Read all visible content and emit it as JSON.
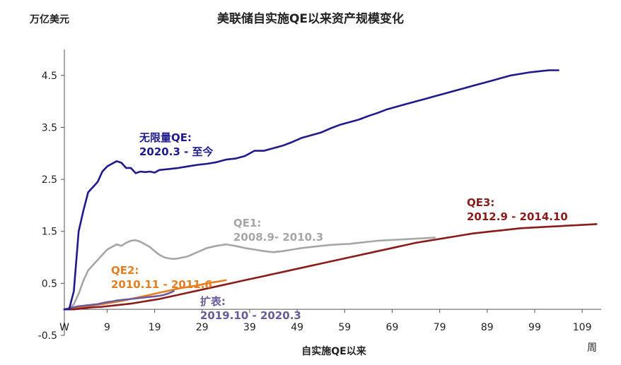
{
  "chart_data": {
    "type": "line",
    "title": "美联储自实施QE以来资产规模变化",
    "ylabel": "万亿美元",
    "xlabel": "自实施QE以来",
    "x_unit_label": "周",
    "x_start_label": "W",
    "xlim": [
      0,
      113
    ],
    "ylim": [
      -0.5,
      5.0
    ],
    "y_ticks": [
      -0.5,
      0.5,
      1.5,
      2.5,
      3.5,
      4.5
    ],
    "y_tick_labels": [
      "-0.5",
      "0.5",
      "1.5",
      "2.5",
      "3.5",
      "4.5"
    ],
    "x_ticks": [
      9,
      19,
      29,
      39,
      49,
      59,
      69,
      79,
      89,
      99,
      109
    ],
    "x_tick_labels": [
      "9",
      "19",
      "29",
      "39",
      "49",
      "59",
      "69",
      "79",
      "89",
      "99",
      "109"
    ],
    "grid": false,
    "colors": {
      "unlimited": "#1f1a8c",
      "qe1": "#a6a6a6",
      "qe2": "#e67e22",
      "qe3": "#8b1a1a",
      "expansion": "#6a5a9a",
      "axis": "#555555"
    },
    "series": [
      {
        "key": "unlimited",
        "name": "无限量QE:",
        "period": "2020.3 - 至今",
        "x": [
          0,
          1,
          2,
          3,
          4,
          5,
          6,
          7,
          8,
          9,
          10,
          11,
          12,
          13,
          14,
          15,
          16,
          17,
          18,
          19,
          20,
          22,
          24,
          26,
          28,
          30,
          32,
          34,
          36,
          38,
          40,
          42,
          44,
          46,
          48,
          50,
          52,
          54,
          56,
          58,
          60,
          62,
          64,
          66,
          68,
          70,
          72,
          74,
          76,
          78,
          80,
          82,
          84,
          86,
          88,
          90,
          92,
          94,
          96,
          98,
          100,
          102,
          104
        ],
        "values": [
          0,
          0,
          0.35,
          1.5,
          1.9,
          2.25,
          2.35,
          2.45,
          2.65,
          2.75,
          2.8,
          2.85,
          2.82,
          2.72,
          2.72,
          2.62,
          2.65,
          2.64,
          2.65,
          2.63,
          2.68,
          2.7,
          2.72,
          2.75,
          2.78,
          2.8,
          2.83,
          2.88,
          2.9,
          2.95,
          3.05,
          3.05,
          3.1,
          3.15,
          3.22,
          3.3,
          3.35,
          3.4,
          3.48,
          3.55,
          3.6,
          3.65,
          3.72,
          3.78,
          3.85,
          3.9,
          3.95,
          4.0,
          4.05,
          4.1,
          4.15,
          4.2,
          4.25,
          4.3,
          4.35,
          4.4,
          4.45,
          4.5,
          4.53,
          4.56,
          4.58,
          4.6,
          4.6
        ]
      },
      {
        "key": "qe1",
        "name": "QE1:",
        "period": "2008.9- 2010.3",
        "x": [
          0,
          1,
          2,
          3,
          4,
          5,
          6,
          7,
          8,
          9,
          10,
          11,
          12,
          13,
          14,
          15,
          16,
          17,
          18,
          19,
          20,
          21,
          22,
          23,
          24,
          25,
          26,
          28,
          30,
          32,
          34,
          36,
          38,
          40,
          42,
          44,
          46,
          48,
          50,
          52,
          54,
          56,
          58,
          60,
          62,
          64,
          66,
          68,
          70,
          72,
          74,
          76,
          78
        ],
        "values": [
          0,
          0,
          0.1,
          0.3,
          0.55,
          0.75,
          0.85,
          0.95,
          1.05,
          1.15,
          1.2,
          1.25,
          1.22,
          1.28,
          1.32,
          1.33,
          1.3,
          1.25,
          1.2,
          1.12,
          1.05,
          1.0,
          0.98,
          0.97,
          0.98,
          1.0,
          1.02,
          1.1,
          1.18,
          1.22,
          1.25,
          1.22,
          1.18,
          1.15,
          1.12,
          1.1,
          1.12,
          1.15,
          1.18,
          1.2,
          1.22,
          1.24,
          1.25,
          1.26,
          1.28,
          1.3,
          1.32,
          1.33,
          1.34,
          1.35,
          1.36,
          1.37,
          1.38
        ]
      },
      {
        "key": "qe2",
        "name": "QE2:",
        "period": "2010.11 - 2011.6",
        "x": [
          0,
          2,
          4,
          6,
          8,
          10,
          12,
          14,
          16,
          18,
          20,
          22,
          24,
          26,
          28,
          30,
          32,
          34
        ],
        "values": [
          0,
          0.02,
          0.05,
          0.08,
          0.1,
          0.13,
          0.16,
          0.2,
          0.24,
          0.28,
          0.32,
          0.36,
          0.4,
          0.43,
          0.46,
          0.5,
          0.53,
          0.56
        ]
      },
      {
        "key": "qe3",
        "name": "QE3:",
        "period": "2012.9 - 2014.10",
        "x": [
          0,
          2,
          4,
          6,
          8,
          10,
          12,
          14,
          16,
          18,
          20,
          22,
          24,
          26,
          28,
          30,
          32,
          34,
          36,
          38,
          40,
          42,
          44,
          46,
          48,
          50,
          52,
          54,
          56,
          58,
          60,
          62,
          64,
          66,
          68,
          70,
          72,
          74,
          76,
          78,
          80,
          82,
          84,
          86,
          88,
          90,
          92,
          94,
          96,
          98,
          100,
          102,
          104,
          106,
          108,
          110,
          112
        ],
        "values": [
          0,
          0,
          0.02,
          0.04,
          0.05,
          0.07,
          0.09,
          0.11,
          0.14,
          0.17,
          0.2,
          0.24,
          0.28,
          0.32,
          0.36,
          0.4,
          0.44,
          0.48,
          0.52,
          0.56,
          0.6,
          0.64,
          0.68,
          0.72,
          0.76,
          0.8,
          0.84,
          0.88,
          0.92,
          0.96,
          1.0,
          1.04,
          1.08,
          1.12,
          1.16,
          1.2,
          1.24,
          1.28,
          1.31,
          1.34,
          1.37,
          1.4,
          1.43,
          1.46,
          1.48,
          1.5,
          1.52,
          1.54,
          1.56,
          1.57,
          1.58,
          1.59,
          1.6,
          1.61,
          1.62,
          1.63,
          1.64
        ]
      },
      {
        "key": "expansion",
        "name": "扩表:",
        "period": "2019.10 - 2020.3",
        "x": [
          0,
          1,
          2,
          3,
          4,
          5,
          6,
          7,
          8,
          9,
          10,
          11,
          12,
          13,
          14,
          15,
          16,
          17,
          18,
          19,
          20,
          21,
          22,
          23
        ],
        "values": [
          0,
          0.02,
          0.04,
          0.06,
          0.07,
          0.08,
          0.09,
          0.1,
          0.12,
          0.14,
          0.15,
          0.17,
          0.18,
          0.19,
          0.2,
          0.21,
          0.22,
          0.23,
          0.24,
          0.25,
          0.26,
          0.28,
          0.31,
          0.35
        ]
      }
    ]
  }
}
